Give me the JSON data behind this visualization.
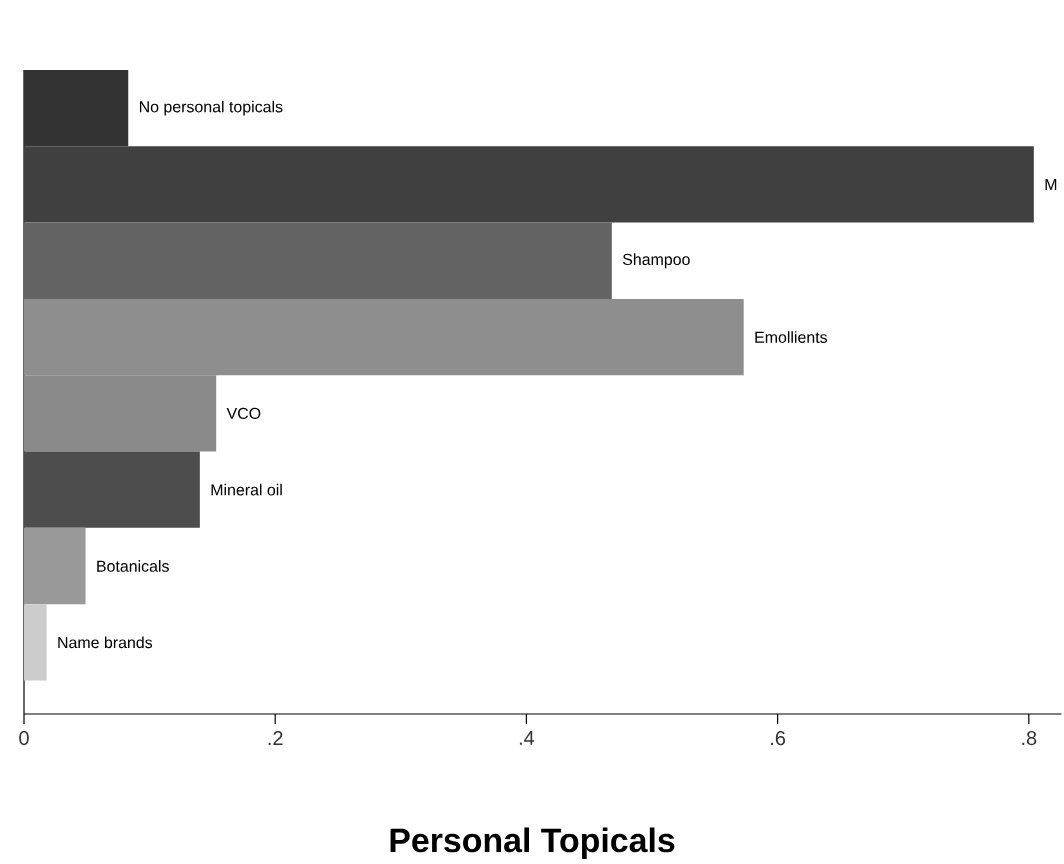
{
  "chart_data": {
    "type": "bar",
    "orientation": "horizontal",
    "title": "Personal Topicals",
    "categories": [
      "No personal topicals",
      "M",
      "Shampoo",
      "Emollients",
      "VCO",
      "Mineral oil",
      "Botanicals",
      "Name brands"
    ],
    "values": [
      0.083,
      0.804,
      0.468,
      0.573,
      0.153,
      0.14,
      0.049,
      0.018
    ],
    "colors": [
      "#333333",
      "#404040",
      "#636363",
      "#8e8e8e",
      "#8a8a8a",
      "#4d4d4d",
      "#999999",
      "#cccccc"
    ],
    "xlim": [
      0,
      0.826
    ],
    "xticks": [
      0,
      {
        "value": 0.2,
        "label": ".2"
      },
      {
        "value": 0.4,
        "label": ".4"
      },
      {
        "value": 0.6,
        "label": ".6"
      },
      {
        "value": 0.8,
        "label": ".8"
      }
    ]
  }
}
